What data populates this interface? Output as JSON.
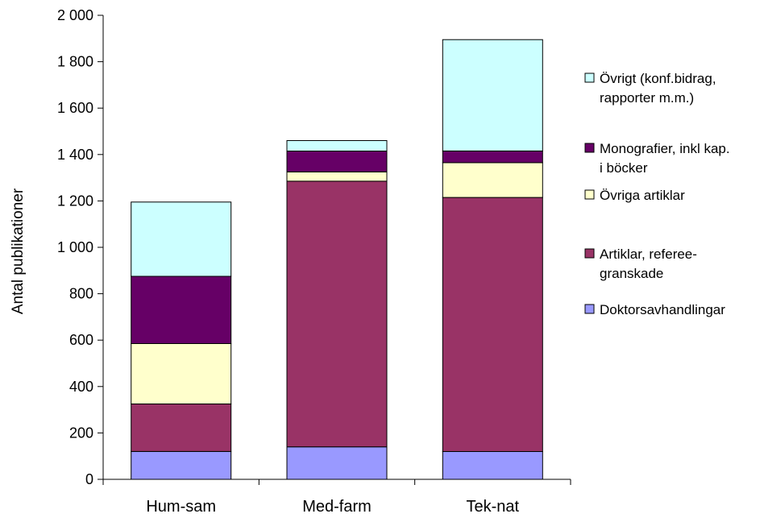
{
  "chart_data": {
    "type": "bar",
    "stacked": true,
    "categories": [
      "Hum-sam",
      "Med-farm",
      "Tek-nat"
    ],
    "ylabel": "Antal publikationer",
    "ylim": [
      0,
      2000
    ],
    "yticks": [
      0,
      200,
      400,
      600,
      800,
      1000,
      1200,
      1400,
      1600,
      1800,
      2000
    ],
    "ytick_labels": [
      "0",
      "200",
      "400",
      "600",
      "800",
      "1 000",
      "1 200",
      "1 400",
      "1 600",
      "1 800",
      "2 000"
    ],
    "grid": false,
    "legend_position": "right",
    "series": [
      {
        "name": "Doktorsavhandlingar",
        "color": "#9999ff",
        "values": [
          120,
          140,
          120
        ]
      },
      {
        "name": "Artiklar, referee-granskade",
        "color": "#993366",
        "values": [
          205,
          1145,
          1095
        ]
      },
      {
        "name": "Övriga artiklar",
        "color": "#ffffcc",
        "values": [
          260,
          40,
          150
        ]
      },
      {
        "name": "Monografier, inkl kap. i böcker",
        "color": "#660066",
        "values": [
          290,
          90,
          50
        ]
      },
      {
        "name": "Övrigt (konf.bidrag, rapporter m.m.)",
        "color": "#ccffff",
        "values": [
          320,
          45,
          480
        ]
      }
    ],
    "legend": [
      {
        "series": 4,
        "lines": [
          "Övrigt (konf.bidrag,",
          "rapporter m.m.)"
        ]
      },
      {
        "series": 3,
        "lines": [
          "Monografier, inkl kap.",
          "i böcker"
        ]
      },
      {
        "series": 2,
        "lines": [
          "Övriga artiklar"
        ]
      },
      {
        "series": 1,
        "lines": [
          "Artiklar, referee-",
          "granskade"
        ]
      },
      {
        "series": 0,
        "lines": [
          "Doktorsavhandlingar"
        ]
      }
    ]
  }
}
